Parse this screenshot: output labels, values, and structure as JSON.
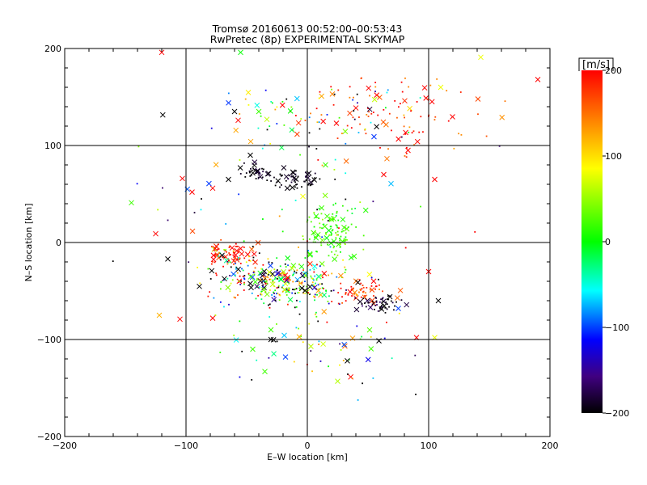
{
  "chart_data": {
    "type": "scatter",
    "title": "Tromsø 20160613 00:52:00–00:53:43",
    "subtitle": "RwPretec (8p) EXPERIMENTAL SKYMAP",
    "xlabel": "E–W location [km]",
    "ylabel": "N–S location [km]",
    "xlim": [
      -200,
      200
    ],
    "ylim": [
      -200,
      200
    ],
    "xticks": [
      "−200",
      "−100",
      "0",
      "100",
      "200"
    ],
    "yticks": [
      "−200",
      "−100",
      "0",
      "100",
      "200"
    ],
    "grid_lines": [
      -100,
      0,
      100
    ],
    "colorbar": {
      "label": "[m/s]",
      "range": [
        -200,
        200
      ],
      "ticks": [
        "200",
        "100",
        "0",
        "−100",
        "−200"
      ],
      "colors": [
        "#ff0000",
        "#ff8000",
        "#ffff00",
        "#00ff00",
        "#00ffff",
        "#0000ff",
        "#400080",
        "#000000"
      ]
    },
    "clusters": [
      {
        "cx": -20,
        "cy": -40,
        "sx": 25,
        "sy": 12,
        "n": 280,
        "v": 0,
        "vs": 150
      },
      {
        "cx": -60,
        "cy": -12,
        "sx": 10,
        "sy": 5,
        "n": 60,
        "v": 190,
        "vs": 15
      },
      {
        "cx": -55,
        "cy": -25,
        "sx": 15,
        "sy": 10,
        "n": 50,
        "v": 0,
        "vs": 150
      },
      {
        "cx": 20,
        "cy": 10,
        "sx": 12,
        "sy": 15,
        "n": 120,
        "v": 20,
        "vs": 15
      },
      {
        "cx": -10,
        "cy": 65,
        "sx": 12,
        "sy": 6,
        "n": 60,
        "v": -195,
        "vs": 10
      },
      {
        "cx": -45,
        "cy": 73,
        "sx": 6,
        "sy": 4,
        "n": 30,
        "v": -195,
        "vs": 10
      },
      {
        "cx": 45,
        "cy": -50,
        "sx": 12,
        "sy": 7,
        "n": 50,
        "v": 180,
        "vs": 30
      },
      {
        "cx": 60,
        "cy": -63,
        "sx": 10,
        "sy": 4,
        "n": 60,
        "v": -190,
        "vs": 20
      },
      {
        "cx": 70,
        "cy": 130,
        "sx": 40,
        "sy": 20,
        "n": 100,
        "v": 180,
        "vs": 30
      },
      {
        "cx": 0,
        "cy": 130,
        "sx": 35,
        "sy": 15,
        "n": 60,
        "v": 0,
        "vs": 150
      },
      {
        "cx": 0,
        "cy": 20,
        "sx": 70,
        "sy": 80,
        "n": 100,
        "v": 0,
        "vs": 150
      },
      {
        "cx": 5,
        "cy": -100,
        "sx": 40,
        "sy": 25,
        "n": 60,
        "v": 0,
        "vs": 150
      }
    ],
    "cross_markers": [
      [
        -120,
        196,
        200
      ],
      [
        -55,
        196,
        0
      ],
      [
        -103,
        66,
        200
      ],
      [
        -95,
        52,
        200
      ],
      [
        -145,
        41,
        20
      ],
      [
        -125,
        9,
        200
      ],
      [
        -115,
        -17,
        -200
      ],
      [
        -122,
        -75,
        120
      ],
      [
        -105,
        -79,
        200
      ],
      [
        -78,
        -78,
        200
      ],
      [
        -45,
        -110,
        20
      ],
      [
        -30,
        -90,
        20
      ],
      [
        -35,
        -133,
        20
      ],
      [
        -18,
        -118,
        -100
      ],
      [
        -30,
        -100,
        -200
      ],
      [
        25,
        -143,
        60
      ],
      [
        33,
        -122,
        -200
      ],
      [
        90,
        -98,
        200
      ],
      [
        105,
        -98,
        80
      ],
      [
        108,
        -60,
        -200
      ],
      [
        143,
        191,
        80
      ],
      [
        190,
        168,
        200
      ],
      [
        110,
        160,
        80
      ],
      [
        83,
        95,
        200
      ],
      [
        63,
        70,
        200
      ],
      [
        -57,
        126,
        200
      ],
      [
        -60,
        135,
        -200
      ],
      [
        -47,
        90,
        -200
      ],
      [
        -40,
        135,
        20
      ],
      [
        -78,
        56,
        200
      ],
      [
        -65,
        65,
        -200
      ],
      [
        15,
        80,
        20
      ],
      [
        105,
        65,
        200
      ],
      [
        75,
        -68,
        -100
      ],
      [
        100,
        -30,
        200
      ]
    ]
  }
}
